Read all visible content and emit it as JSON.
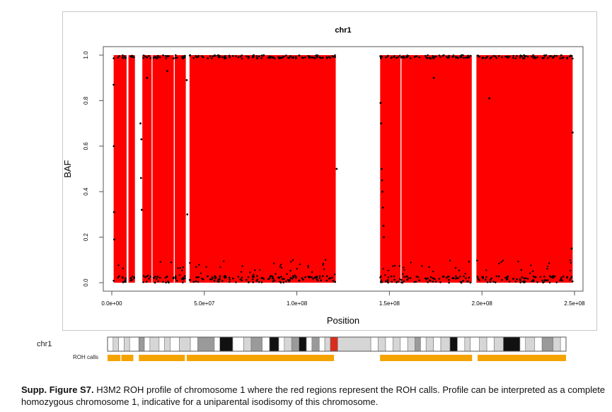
{
  "figure": {
    "caption_label": "Supp. Figure S7.",
    "caption_text": "H3M2 ROH profile of chromosome 1 where the red regions represent the ROH calls. Profile can be interpreted as a complete homozygous chromosome 1, indicative for a uniparental isodisomy of this chromosome."
  },
  "chart_data": {
    "type": "scatter",
    "title": "chr1",
    "xlabel": "Position",
    "ylabel": "BAF",
    "xlim": [
      0,
      250000000
    ],
    "ylim": [
      0,
      1
    ],
    "x_ticks": [
      0,
      50000000,
      100000000,
      150000000,
      200000000,
      250000000
    ],
    "x_tick_labels": [
      "0.0e+00",
      "5.0e+07",
      "1.0e+08",
      "1.5e+08",
      "2.0e+08",
      "2.5e+08"
    ],
    "y_ticks": [
      0,
      0.2,
      0.4,
      0.6,
      0.8,
      1
    ],
    "y_tick_labels": [
      "0.0",
      "0.2",
      "0.4",
      "0.6",
      "0.8",
      "1.0"
    ],
    "grid": false,
    "roh_color": "#ff0000",
    "point_color": "#000000",
    "roh_regions": [
      [
        1000000,
        8000000
      ],
      [
        9000000,
        12500000
      ],
      [
        16500000,
        21500000
      ],
      [
        22000000,
        33500000
      ],
      [
        34000000,
        40000000
      ],
      [
        42000000,
        121000000
      ],
      [
        145000000,
        156000000
      ],
      [
        156500000,
        194500000
      ],
      [
        197000000,
        249000000
      ]
    ],
    "baf_notable_points": [
      {
        "x": 1000000,
        "y": 0.87
      },
      {
        "x": 1100000,
        "y": 0.6
      },
      {
        "x": 1200000,
        "y": 0.31
      },
      {
        "x": 1300000,
        "y": 0.19
      },
      {
        "x": 15500000,
        "y": 0.7
      },
      {
        "x": 16000000,
        "y": 0.63
      },
      {
        "x": 15800000,
        "y": 0.46
      },
      {
        "x": 16200000,
        "y": 0.32
      },
      {
        "x": 19000000,
        "y": 0.9
      },
      {
        "x": 30000000,
        "y": 0.93
      },
      {
        "x": 40500000,
        "y": 0.89
      },
      {
        "x": 40800000,
        "y": 0.3
      },
      {
        "x": 121500000,
        "y": 0.5
      },
      {
        "x": 145200000,
        "y": 0.79
      },
      {
        "x": 145500000,
        "y": 0.7
      },
      {
        "x": 145800000,
        "y": 0.5
      },
      {
        "x": 146000000,
        "y": 0.45
      },
      {
        "x": 146200000,
        "y": 0.4
      },
      {
        "x": 146500000,
        "y": 0.33
      },
      {
        "x": 146800000,
        "y": 0.25
      },
      {
        "x": 147000000,
        "y": 0.2
      },
      {
        "x": 174000000,
        "y": 0.9
      },
      {
        "x": 204000000,
        "y": 0.81
      },
      {
        "x": 249000000,
        "y": 0.66
      },
      {
        "x": 248500000,
        "y": 0.15
      }
    ]
  },
  "ideogram": {
    "chromosome_label": "chr1",
    "roh_label": "ROH calls",
    "band_colors": {
      "white": "#ffffff",
      "light": "#d6d6d6",
      "mid": "#9a9a9a",
      "dark": "#111111",
      "centromere": "#d92b1e"
    },
    "band_text_color": "#e69a00",
    "roh_color": "#f5a300",
    "bands": [
      {
        "start": 0,
        "end": 3000000,
        "stain": "white"
      },
      {
        "start": 3000000,
        "end": 6000000,
        "stain": "light"
      },
      {
        "start": 6000000,
        "end": 9000000,
        "stain": "white"
      },
      {
        "start": 9000000,
        "end": 12000000,
        "stain": "light"
      },
      {
        "start": 12000000,
        "end": 17000000,
        "stain": "white"
      },
      {
        "start": 17000000,
        "end": 20000000,
        "stain": "mid"
      },
      {
        "start": 20000000,
        "end": 23000000,
        "stain": "white"
      },
      {
        "start": 23000000,
        "end": 28000000,
        "stain": "light"
      },
      {
        "start": 28000000,
        "end": 31000000,
        "stain": "white"
      },
      {
        "start": 31000000,
        "end": 34000000,
        "stain": "light"
      },
      {
        "start": 34000000,
        "end": 39000000,
        "stain": "white"
      },
      {
        "start": 39000000,
        "end": 45000000,
        "stain": "light"
      },
      {
        "start": 45000000,
        "end": 49000000,
        "stain": "white"
      },
      {
        "start": 49000000,
        "end": 58000000,
        "stain": "mid"
      },
      {
        "start": 58000000,
        "end": 61000000,
        "stain": "white"
      },
      {
        "start": 61000000,
        "end": 68000000,
        "stain": "dark"
      },
      {
        "start": 68000000,
        "end": 74000000,
        "stain": "white"
      },
      {
        "start": 74000000,
        "end": 78000000,
        "stain": "light"
      },
      {
        "start": 78000000,
        "end": 84000000,
        "stain": "mid"
      },
      {
        "start": 84000000,
        "end": 88000000,
        "stain": "white"
      },
      {
        "start": 88000000,
        "end": 93000000,
        "stain": "dark"
      },
      {
        "start": 93000000,
        "end": 96000000,
        "stain": "white"
      },
      {
        "start": 96000000,
        "end": 100000000,
        "stain": "light"
      },
      {
        "start": 100000000,
        "end": 104000000,
        "stain": "mid"
      },
      {
        "start": 104000000,
        "end": 108000000,
        "stain": "dark"
      },
      {
        "start": 108000000,
        "end": 111000000,
        "stain": "white"
      },
      {
        "start": 111000000,
        "end": 115000000,
        "stain": "mid"
      },
      {
        "start": 115000000,
        "end": 118000000,
        "stain": "white"
      },
      {
        "start": 118000000,
        "end": 121000000,
        "stain": "light"
      },
      {
        "start": 121000000,
        "end": 125000000,
        "stain": "centromere"
      },
      {
        "start": 125000000,
        "end": 143000000,
        "stain": "light"
      },
      {
        "start": 143000000,
        "end": 147000000,
        "stain": "white"
      },
      {
        "start": 147000000,
        "end": 151000000,
        "stain": "light"
      },
      {
        "start": 151000000,
        "end": 155000000,
        "stain": "white"
      },
      {
        "start": 155000000,
        "end": 159000000,
        "stain": "light"
      },
      {
        "start": 159000000,
        "end": 163000000,
        "stain": "white"
      },
      {
        "start": 163000000,
        "end": 167000000,
        "stain": "light"
      },
      {
        "start": 167000000,
        "end": 170000000,
        "stain": "mid"
      },
      {
        "start": 170000000,
        "end": 173000000,
        "stain": "white"
      },
      {
        "start": 173000000,
        "end": 177000000,
        "stain": "light"
      },
      {
        "start": 177000000,
        "end": 181000000,
        "stain": "white"
      },
      {
        "start": 181000000,
        "end": 186000000,
        "stain": "light"
      },
      {
        "start": 186000000,
        "end": 190000000,
        "stain": "dark"
      },
      {
        "start": 190000000,
        "end": 194000000,
        "stain": "white"
      },
      {
        "start": 194000000,
        "end": 197000000,
        "stain": "light"
      },
      {
        "start": 197000000,
        "end": 202000000,
        "stain": "white"
      },
      {
        "start": 202000000,
        "end": 206000000,
        "stain": "light"
      },
      {
        "start": 206000000,
        "end": 210000000,
        "stain": "white"
      },
      {
        "start": 210000000,
        "end": 215000000,
        "stain": "light"
      },
      {
        "start": 215000000,
        "end": 224000000,
        "stain": "dark"
      },
      {
        "start": 224000000,
        "end": 227000000,
        "stain": "white"
      },
      {
        "start": 227000000,
        "end": 232000000,
        "stain": "light"
      },
      {
        "start": 232000000,
        "end": 236000000,
        "stain": "white"
      },
      {
        "start": 236000000,
        "end": 242000000,
        "stain": "mid"
      },
      {
        "start": 242000000,
        "end": 246000000,
        "stain": "light"
      },
      {
        "start": 246000000,
        "end": 249000000,
        "stain": "white"
      }
    ],
    "roh_calls": [
      [
        0,
        7000000
      ],
      [
        7500000,
        14000000
      ],
      [
        17000000,
        42000000
      ],
      [
        43000000,
        123000000
      ],
      [
        148000000,
        198000000
      ],
      [
        201000000,
        249000000
      ]
    ]
  }
}
